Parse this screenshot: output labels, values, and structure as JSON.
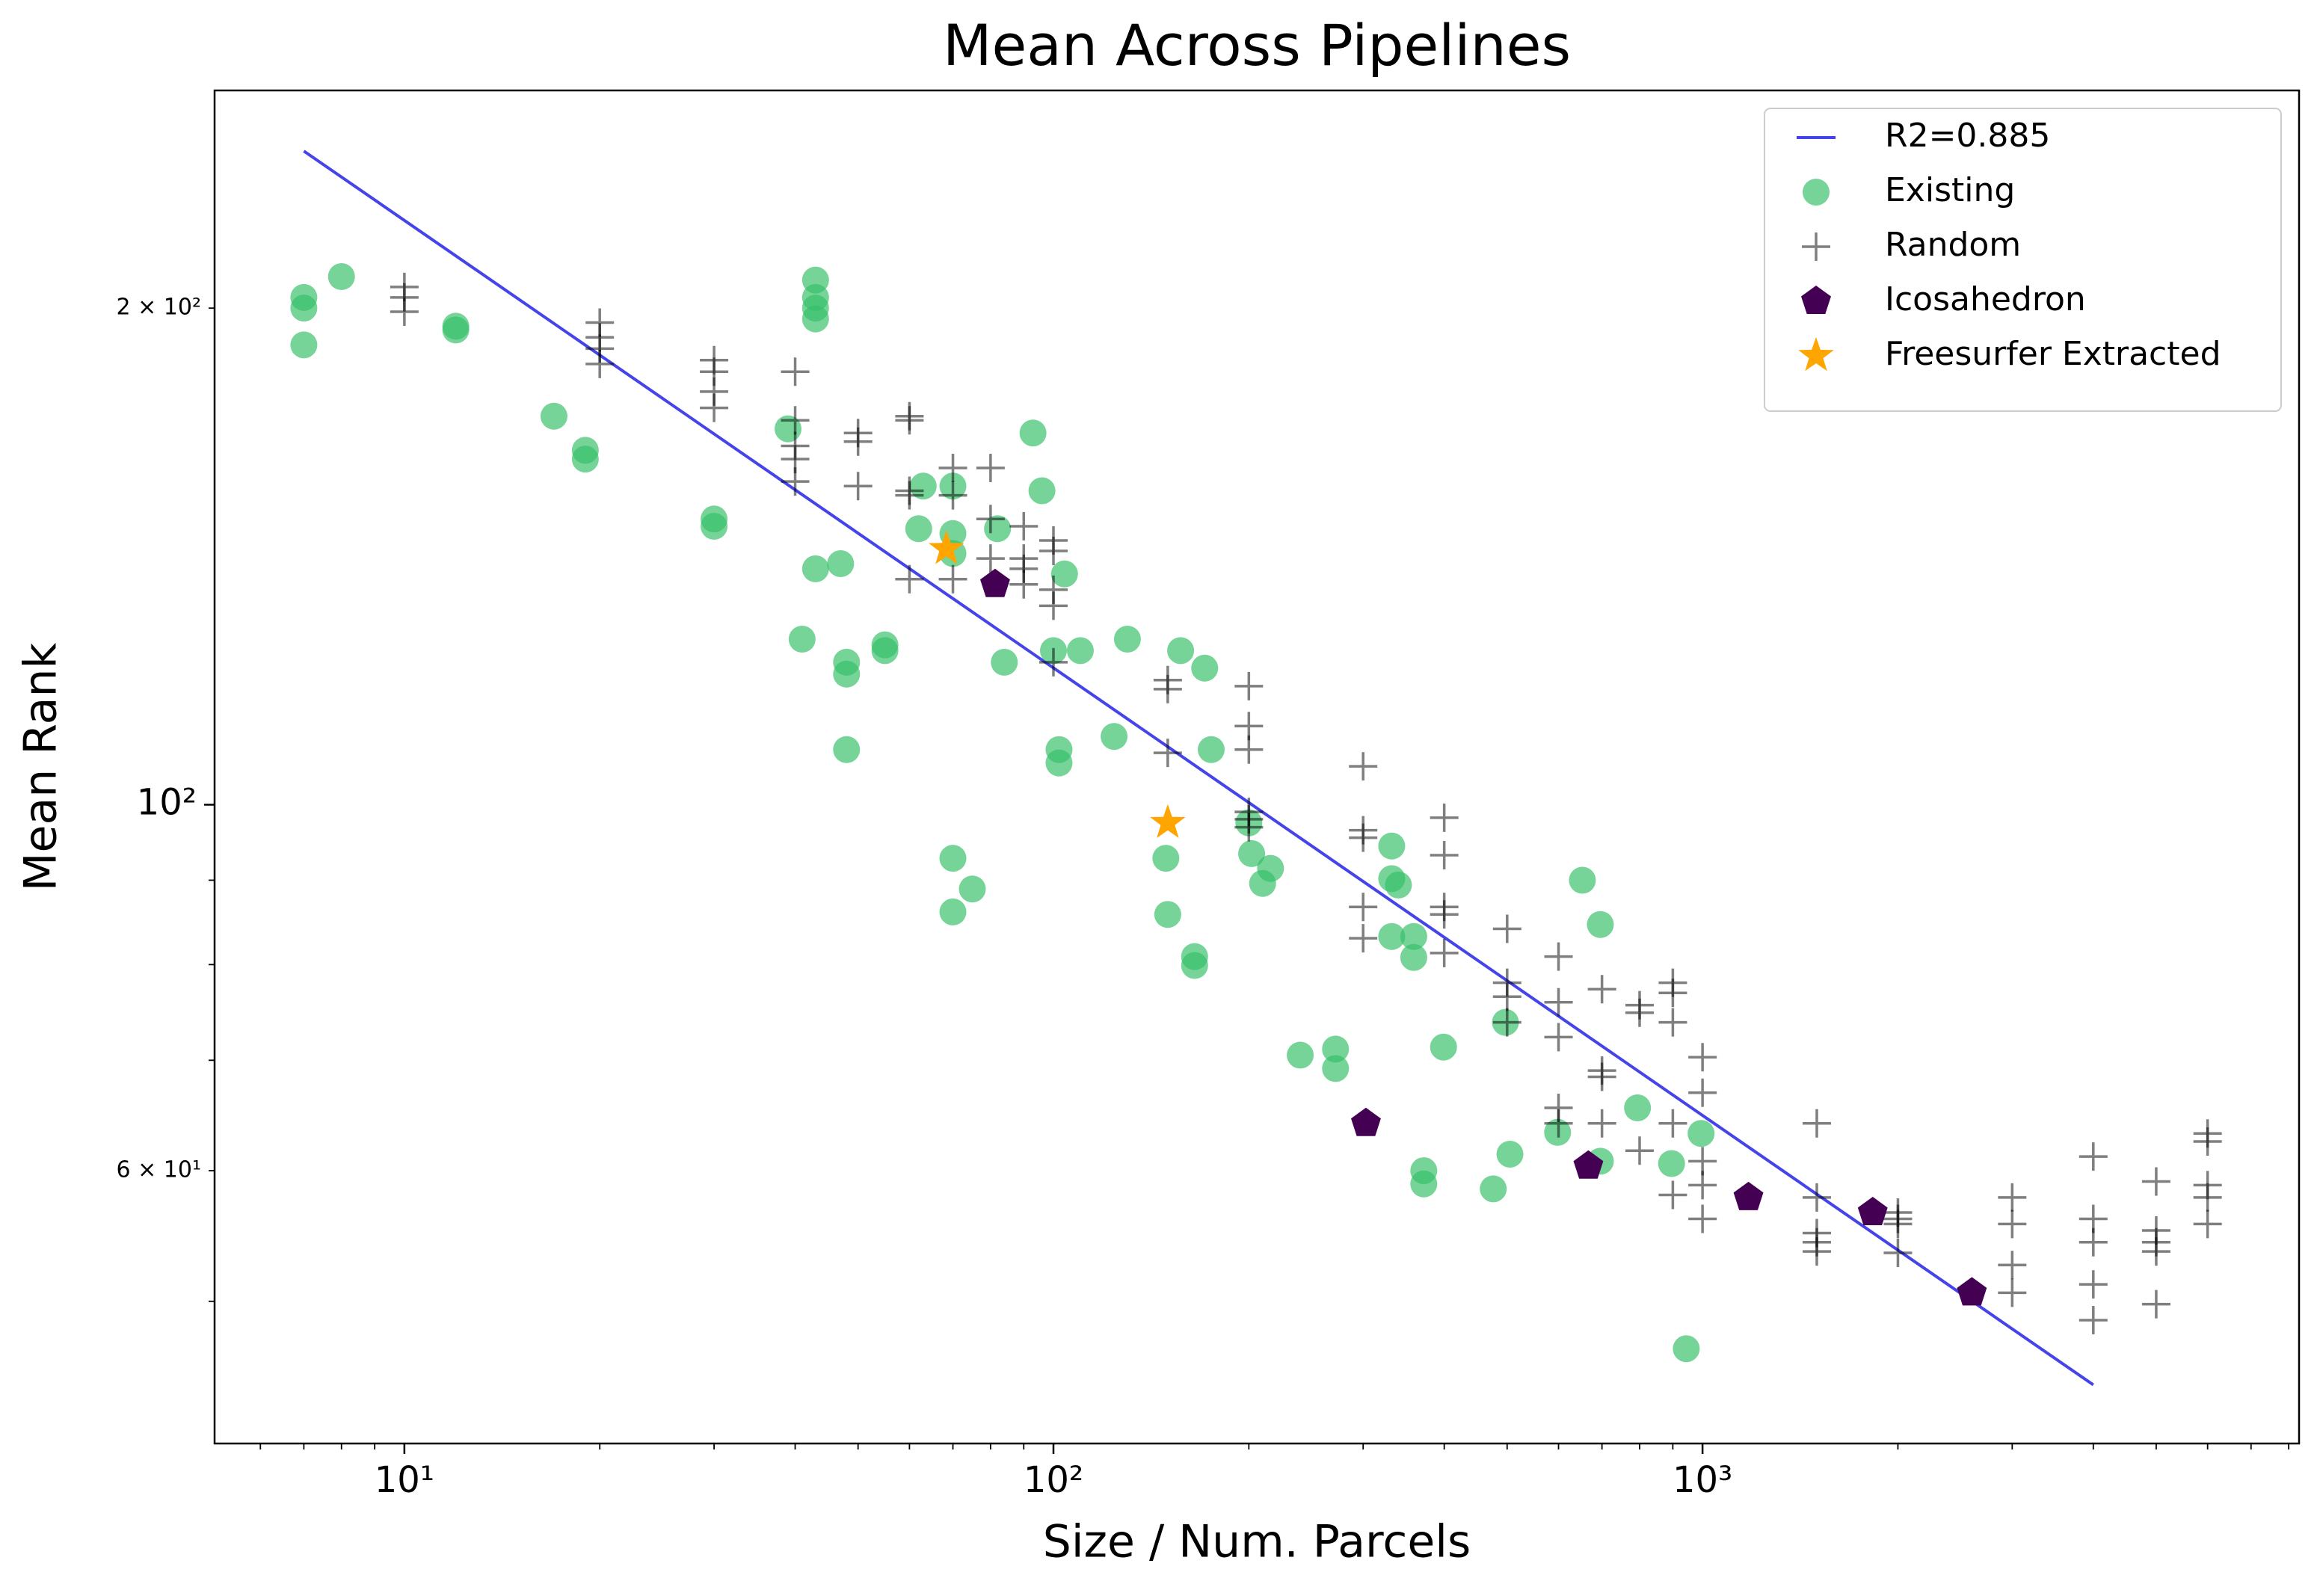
{
  "chart_data": {
    "type": "scatter",
    "title": "Mean Across Pipelines",
    "xlabel": "Size / Num. Parcels",
    "ylabel": "Mean Rank",
    "xscale": "log",
    "yscale": "log",
    "xlim": [
      5.1,
      8300
    ],
    "ylim": [
      41,
      271
    ],
    "xticks": [
      {
        "value": 10,
        "label": "10¹"
      },
      {
        "value": 100,
        "label": "10²"
      },
      {
        "value": 1000,
        "label": "10³"
      }
    ],
    "xminor_ticks": [
      6,
      7,
      8,
      9,
      20,
      30,
      40,
      50,
      60,
      70,
      80,
      90,
      200,
      300,
      400,
      500,
      600,
      700,
      800,
      900,
      2000,
      3000,
      4000,
      5000,
      6000,
      7000,
      8000
    ],
    "yticks": [
      {
        "value": 100,
        "label": "10²"
      }
    ],
    "yminor_ticks": [
      50,
      {
        "value": 60,
        "label": "6 × 10¹"
      },
      70,
      80,
      90,
      {
        "value": 200,
        "label": "2 × 10²"
      }
    ],
    "legend": "upper right",
    "series": [
      {
        "name": "R2=0.885",
        "marker": "line",
        "color": "#2323e6",
        "x": [
          7,
          4000
        ],
        "values": [
          249,
          44.5
        ]
      },
      {
        "name": "Existing",
        "marker": "circle",
        "color": "#35bf68",
        "x": [
          7,
          7,
          7,
          8,
          12,
          12,
          17,
          19,
          19,
          30,
          30,
          39,
          43,
          43,
          43,
          43,
          43,
          47,
          41,
          48,
          48,
          48,
          55,
          55,
          63,
          62,
          70,
          70,
          70,
          70,
          70,
          75,
          82,
          84,
          93,
          96,
          100,
          102,
          102,
          104,
          110,
          124,
          130,
          149,
          150,
          157,
          165,
          165,
          171,
          175,
          200,
          202,
          210,
          216,
          240,
          272,
          272,
          332,
          332,
          340,
          332,
          359,
          359,
          399,
          372,
          372,
          476,
          497,
          505,
          598,
          653,
          696,
          696,
          794,
          896,
          944,
          995
        ],
        "values": [
          203,
          200,
          190,
          209,
          195,
          194,
          172,
          164,
          162,
          149,
          147.5,
          169,
          208,
          203,
          200,
          197,
          139,
          140,
          126,
          122,
          120,
          108,
          125,
          124,
          156,
          147,
          156,
          146,
          142,
          92.8,
          86.1,
          88.9,
          147,
          122,
          168,
          155,
          124,
          108,
          106,
          138,
          124,
          110,
          126,
          92.8,
          85.8,
          124,
          80.9,
          79.9,
          121,
          108,
          97.5,
          93.4,
          89.6,
          91.5,
          70.5,
          71.1,
          69.2,
          94.4,
          90.2,
          89.4,
          83.2,
          83.2,
          80.8,
          71.3,
          60,
          58.9,
          58.5,
          73.8,
          61.4,
          63.3,
          90,
          84.6,
          60.8,
          65.5,
          60.6,
          46.8,
          63.2
        ]
      },
      {
        "name": "Random",
        "marker": "plus",
        "color": "#000000",
        "x": [
          10,
          10,
          10,
          20,
          20,
          20,
          20,
          30,
          30,
          30,
          30,
          40,
          40,
          40,
          40,
          40,
          50,
          50,
          50,
          60,
          60,
          60,
          60,
          60,
          70,
          70,
          70,
          80,
          80,
          80,
          90,
          90,
          90,
          90,
          100,
          100,
          100,
          100,
          100,
          150,
          150,
          150,
          200,
          200,
          200,
          200,
          200,
          200,
          300,
          300,
          300,
          300,
          300,
          400,
          400,
          400,
          400,
          400,
          500,
          500,
          500,
          500,
          600,
          600,
          600,
          600,
          600,
          700,
          700,
          700,
          700,
          800,
          800,
          800,
          900,
          900,
          900,
          900,
          900,
          1000,
          1000,
          1000,
          1000,
          1000,
          1500,
          1500,
          1500,
          1500,
          1500,
          2000,
          2000,
          2000,
          2000,
          3000,
          3000,
          3000,
          3000,
          4000,
          4000,
          4000,
          4000,
          4000,
          5000,
          5000,
          5000,
          5000,
          5000,
          6000,
          6000,
          6000,
          6000,
          6000
        ],
        "values": [
          206,
          203,
          199,
          196,
          192,
          189,
          185,
          186,
          183,
          178,
          174,
          183,
          171,
          165,
          162,
          157,
          168,
          166,
          156,
          172,
          171,
          155,
          154,
          137,
          160,
          154,
          137,
          160,
          149,
          141,
          147.5,
          141,
          139,
          136,
          144.6,
          142.5,
          135,
          132,
          122,
          119,
          117.5,
          107.5,
          118,
          111.6,
          108,
          99,
          98,
          96.9,
          105.5,
          96.5,
          95.5,
          86.7,
          83,
          98.2,
          93.2,
          86.7,
          85.8,
          81.3,
          84.1,
          78,
          76.5,
          73.8,
          80.9,
          75.9,
          72.3,
          65.5,
          64.1,
          77.3,
          69,
          68.4,
          64.1,
          75.6,
          74.8,
          61.7,
          78,
          76.9,
          73.8,
          64.1,
          58,
          70.3,
          66.9,
          60.8,
          58.8,
          56.1,
          64.1,
          57.8,
          55,
          54.3,
          53.6,
          56.6,
          56.1,
          55.7,
          53.5,
          57.8,
          55.7,
          52.6,
          50.6,
          61.2,
          56.1,
          54.3,
          51.2,
          48.7,
          59.1,
          55.2,
          54.3,
          53.6,
          49.8,
          63.2,
          62.5,
          58.8,
          57.8,
          55.7
        ]
      },
      {
        "name": "Icosahedron",
        "marker": "pentagon",
        "color": "#440154",
        "x": [
          81.3,
          303,
          667,
          1177,
          1829,
          2600
        ],
        "values": [
          136,
          64.1,
          60.4,
          57.8,
          56.6,
          50.6
        ]
      },
      {
        "name": "Freesurfer Extracted",
        "marker": "star",
        "color": "#ffa500",
        "x": [
          68.4,
          150
        ],
        "values": [
          142.9,
          97.5
        ]
      }
    ]
  }
}
